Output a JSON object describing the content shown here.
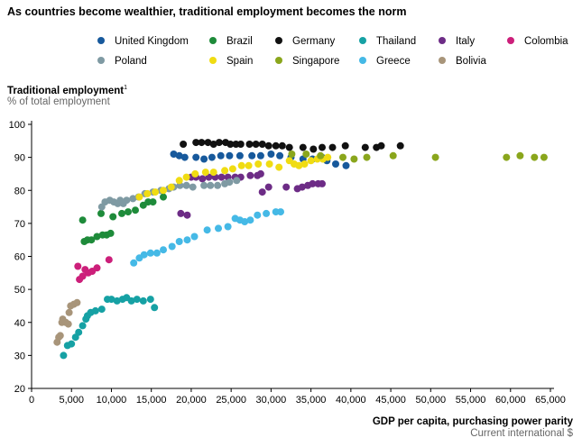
{
  "chart_data": {
    "type": "scatter",
    "title": "As countries become wealthier, traditional employment becomes the norm",
    "ylabel": "Traditional employment",
    "ylabel_footnote": "1",
    "yunits": "% of total employment",
    "xlabel": "GDP per capita, purchasing power parity",
    "xunits": "Current international $",
    "xlim": [
      0,
      65000
    ],
    "ylim": [
      20,
      100
    ],
    "x_ticks": [
      0,
      5000,
      10000,
      15000,
      20000,
      25000,
      30000,
      35000,
      40000,
      45000,
      50000,
      55000,
      60000,
      65000
    ],
    "x_tick_labels": [
      "0",
      "5,000",
      "10,000",
      "15,000",
      "20,000",
      "25,000",
      "30,000",
      "35,000",
      "40,000",
      "45,000",
      "50,000",
      "55,000",
      "60,000",
      "65,000"
    ],
    "y_ticks": [
      20,
      30,
      40,
      50,
      60,
      70,
      80,
      90,
      100
    ],
    "y_tick_labels": [
      "20",
      "30",
      "40",
      "50",
      "60",
      "70",
      "80",
      "90",
      "100"
    ],
    "grid": false,
    "legend_position": "top",
    "series": [
      {
        "name": "United Kingdom",
        "color": "#17599c",
        "points": [
          [
            17800,
            91
          ],
          [
            18500,
            90.5
          ],
          [
            19200,
            90
          ],
          [
            20600,
            90
          ],
          [
            21600,
            89.5
          ],
          [
            22600,
            90
          ],
          [
            23700,
            90.5
          ],
          [
            24800,
            90.5
          ],
          [
            26100,
            90.5
          ],
          [
            27600,
            90.5
          ],
          [
            28700,
            90.5
          ],
          [
            30000,
            91
          ],
          [
            31100,
            90.5
          ],
          [
            32500,
            90
          ],
          [
            34000,
            89.5
          ],
          [
            35200,
            89.5
          ],
          [
            36400,
            90
          ],
          [
            37000,
            89
          ],
          [
            38100,
            88
          ],
          [
            39400,
            87.5
          ]
        ]
      },
      {
        "name": "Brazil",
        "color": "#1e8b3a",
        "points": [
          [
            6400,
            71
          ],
          [
            6600,
            64.5
          ],
          [
            7000,
            65
          ],
          [
            7500,
            65
          ],
          [
            8200,
            66
          ],
          [
            8900,
            66.5
          ],
          [
            9400,
            66.5
          ],
          [
            9900,
            67
          ],
          [
            8700,
            73
          ],
          [
            10200,
            72
          ],
          [
            11300,
            73
          ],
          [
            12100,
            73.5
          ],
          [
            13000,
            74
          ],
          [
            14000,
            75.5
          ],
          [
            14600,
            76.5
          ],
          [
            15200,
            76.5
          ],
          [
            16500,
            78
          ]
        ]
      },
      {
        "name": "Germany",
        "color": "#111111",
        "points": [
          [
            19000,
            94
          ],
          [
            20600,
            94.5
          ],
          [
            21300,
            94.5
          ],
          [
            22100,
            94.5
          ],
          [
            22800,
            94
          ],
          [
            23500,
            94.5
          ],
          [
            24300,
            94.5
          ],
          [
            24900,
            94
          ],
          [
            25600,
            94
          ],
          [
            26200,
            94
          ],
          [
            27300,
            94
          ],
          [
            28100,
            94
          ],
          [
            28900,
            94
          ],
          [
            29700,
            93.5
          ],
          [
            30600,
            93.5
          ],
          [
            31400,
            93.5
          ],
          [
            32300,
            93
          ],
          [
            34000,
            93
          ],
          [
            35300,
            92.5
          ],
          [
            36400,
            93
          ],
          [
            37700,
            93
          ],
          [
            39300,
            93.5
          ],
          [
            41800,
            93
          ],
          [
            43200,
            93
          ],
          [
            43800,
            93.5
          ],
          [
            46200,
            93.5
          ]
        ]
      },
      {
        "name": "Thailand",
        "color": "#16a1a4",
        "points": [
          [
            4000,
            30
          ],
          [
            4500,
            33
          ],
          [
            5000,
            33.5
          ],
          [
            5500,
            35.5
          ],
          [
            5900,
            37
          ],
          [
            6400,
            39
          ],
          [
            6800,
            41
          ],
          [
            7000,
            42
          ],
          [
            7400,
            43
          ],
          [
            8000,
            43.5
          ],
          [
            8800,
            44
          ],
          [
            9500,
            47
          ],
          [
            10000,
            47
          ],
          [
            10700,
            46.5
          ],
          [
            11400,
            47
          ],
          [
            11900,
            47.5
          ],
          [
            12500,
            46.5
          ],
          [
            13200,
            47
          ],
          [
            14000,
            46.5
          ],
          [
            14900,
            47
          ],
          [
            15400,
            44.5
          ]
        ]
      },
      {
        "name": "Italy",
        "color": "#6d2c86",
        "points": [
          [
            18700,
            73
          ],
          [
            19500,
            72.5
          ],
          [
            20000,
            84
          ],
          [
            20600,
            84
          ],
          [
            21400,
            83.5
          ],
          [
            22200,
            84
          ],
          [
            23000,
            84
          ],
          [
            23800,
            84
          ],
          [
            24600,
            84
          ],
          [
            25500,
            84
          ],
          [
            26200,
            84
          ],
          [
            27400,
            84.5
          ],
          [
            28300,
            84.5
          ],
          [
            28700,
            85
          ],
          [
            28900,
            79.5
          ],
          [
            29700,
            81
          ],
          [
            31900,
            81
          ],
          [
            33300,
            80.5
          ],
          [
            33900,
            81
          ],
          [
            34600,
            81.5
          ],
          [
            35200,
            82
          ],
          [
            35900,
            82
          ],
          [
            36400,
            82
          ]
        ]
      },
      {
        "name": "Colombia",
        "color": "#cc1f7a",
        "points": [
          [
            5800,
            57
          ],
          [
            6000,
            53
          ],
          [
            6400,
            54
          ],
          [
            6700,
            56
          ],
          [
            7100,
            55
          ],
          [
            7600,
            55.5
          ],
          [
            8200,
            56.5
          ],
          [
            9700,
            59
          ]
        ]
      },
      {
        "name": "Poland",
        "color": "#7f9aa3",
        "points": [
          [
            8800,
            75
          ],
          [
            9200,
            76.5
          ],
          [
            9800,
            77
          ],
          [
            10300,
            76.5
          ],
          [
            10800,
            76
          ],
          [
            11100,
            77
          ],
          [
            11500,
            76
          ],
          [
            11900,
            77
          ],
          [
            12700,
            77.5
          ],
          [
            13400,
            78
          ],
          [
            14200,
            79
          ],
          [
            15200,
            79.5
          ],
          [
            16200,
            80
          ],
          [
            17200,
            80.5
          ],
          [
            17800,
            81
          ],
          [
            18600,
            81.5
          ],
          [
            19400,
            81.5
          ],
          [
            20200,
            81
          ],
          [
            21600,
            81.5
          ],
          [
            22400,
            81.5
          ],
          [
            23300,
            81.5
          ],
          [
            24200,
            82
          ],
          [
            24800,
            82.5
          ],
          [
            25700,
            83
          ]
        ]
      },
      {
        "name": "Spain",
        "color": "#f0dc12",
        "points": [
          [
            13500,
            78
          ],
          [
            14500,
            79
          ],
          [
            15500,
            79.5
          ],
          [
            16500,
            80
          ],
          [
            17500,
            81
          ],
          [
            18500,
            83
          ],
          [
            19400,
            84
          ],
          [
            20500,
            85
          ],
          [
            21800,
            85.5
          ],
          [
            22800,
            85.5
          ],
          [
            24200,
            86
          ],
          [
            25200,
            86.5
          ],
          [
            26300,
            87.5
          ],
          [
            27200,
            87.5
          ],
          [
            28400,
            88
          ],
          [
            29800,
            88
          ],
          [
            31000,
            87
          ],
          [
            32300,
            89
          ],
          [
            32900,
            88
          ],
          [
            33500,
            87.5
          ],
          [
            34200,
            88
          ],
          [
            35000,
            89
          ],
          [
            35800,
            89.5
          ],
          [
            36500,
            89.5
          ],
          [
            37100,
            90
          ]
        ]
      },
      {
        "name": "Singapore",
        "color": "#8aa61c",
        "points": [
          [
            32600,
            91
          ],
          [
            34400,
            91
          ],
          [
            36200,
            90.5
          ],
          [
            39000,
            90
          ],
          [
            40400,
            89.5
          ],
          [
            42000,
            90
          ],
          [
            45300,
            90.5
          ],
          [
            50600,
            90
          ],
          [
            59500,
            90
          ],
          [
            61200,
            90.5
          ],
          [
            63000,
            90
          ],
          [
            64200,
            90
          ]
        ]
      },
      {
        "name": "Greece",
        "color": "#45b9e6",
        "points": [
          [
            12800,
            58
          ],
          [
            13500,
            59.5
          ],
          [
            14100,
            60.5
          ],
          [
            14900,
            61
          ],
          [
            15700,
            61
          ],
          [
            16500,
            62
          ],
          [
            17600,
            63
          ],
          [
            18500,
            64.5
          ],
          [
            19500,
            65
          ],
          [
            20400,
            66
          ],
          [
            22000,
            68
          ],
          [
            23400,
            68.5
          ],
          [
            24600,
            69
          ],
          [
            25500,
            71.5
          ],
          [
            26100,
            71
          ],
          [
            26700,
            70.5
          ],
          [
            27400,
            71
          ],
          [
            28300,
            72.5
          ],
          [
            29400,
            73
          ],
          [
            30600,
            73.5
          ],
          [
            31200,
            73.5
          ]
        ]
      },
      {
        "name": "Bolivia",
        "color": "#a8957a",
        "points": [
          [
            3200,
            34
          ],
          [
            3400,
            35.5
          ],
          [
            3600,
            36
          ],
          [
            3800,
            40
          ],
          [
            3900,
            41
          ],
          [
            4300,
            40
          ],
          [
            4600,
            39.5
          ],
          [
            4700,
            43
          ],
          [
            4900,
            45
          ],
          [
            5300,
            45.5
          ],
          [
            5700,
            46
          ]
        ]
      }
    ]
  }
}
